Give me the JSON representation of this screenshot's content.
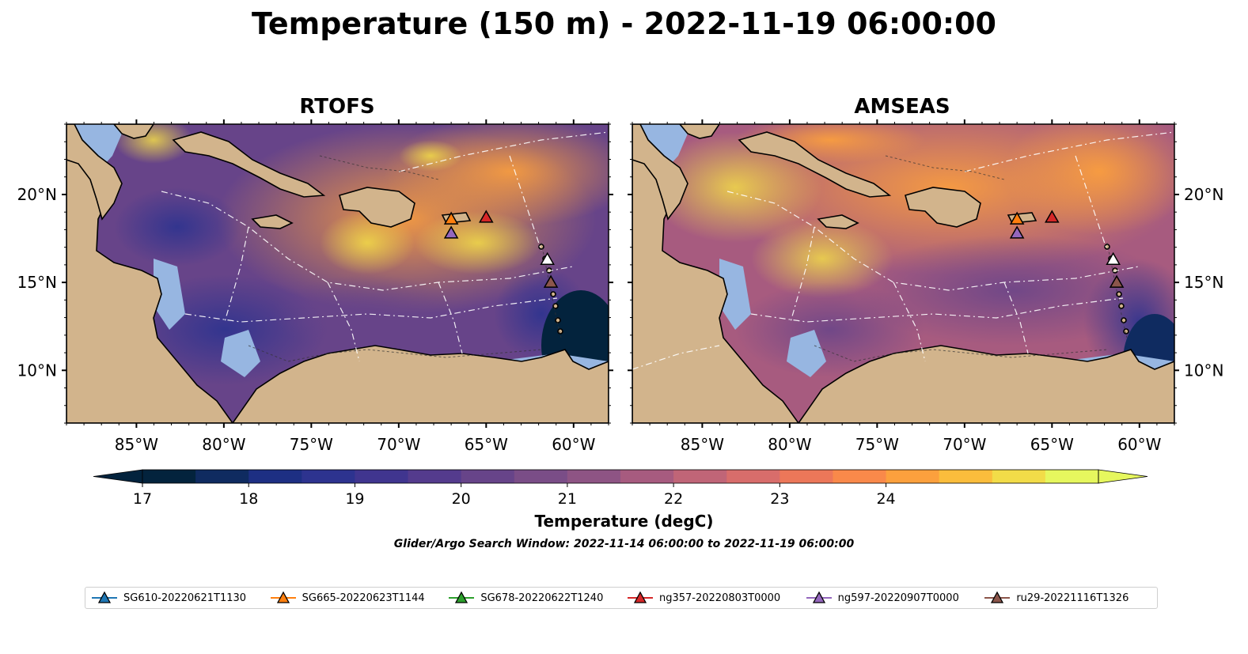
{
  "title": "Temperature (150 m) - 2022-11-19 06:00:00",
  "panels": [
    {
      "title": "RTOFS",
      "gliders": [
        {
          "lon": -67.0,
          "lat": 18.6,
          "color": "#ff7f0e"
        },
        {
          "lon": -65.0,
          "lat": 18.7,
          "color": "#d62728"
        },
        {
          "lon": -67.0,
          "lat": 17.8,
          "color": "#9467bd"
        },
        {
          "lon": -61.5,
          "lat": 16.3,
          "color": "#ffffff"
        },
        {
          "lon": -61.3,
          "lat": 15.0,
          "color": "#8c564b"
        }
      ]
    },
    {
      "title": "AMSEAS",
      "gliders": [
        {
          "lon": -67.0,
          "lat": 18.6,
          "color": "#ff7f0e"
        },
        {
          "lon": -65.0,
          "lat": 18.7,
          "color": "#d62728"
        },
        {
          "lon": -67.0,
          "lat": 17.8,
          "color": "#9467bd"
        },
        {
          "lon": -61.5,
          "lat": 16.3,
          "color": "#ffffff"
        },
        {
          "lon": -61.3,
          "lat": 15.0,
          "color": "#8c564b"
        }
      ]
    }
  ],
  "axes": {
    "lon_ticks": [
      "85°W",
      "80°W",
      "75°W",
      "70°W",
      "65°W",
      "60°W"
    ],
    "lat_ticks": [
      "20°N",
      "15°N",
      "10°N"
    ],
    "lon_range": [
      -89,
      -58
    ],
    "lat_range": [
      7,
      24
    ]
  },
  "colorbar": {
    "label": "Temperature (degC)",
    "ticks": [
      "17",
      "18",
      "19",
      "20",
      "21",
      "22",
      "23",
      "24"
    ],
    "min": 17,
    "max": 24.5,
    "step": 0.5,
    "extend": "both",
    "colors": [
      "#03233d",
      "#0f2b60",
      "#1d2f83",
      "#2d338f",
      "#40358f",
      "#543b8d",
      "#674489",
      "#7a4d87",
      "#8e5484",
      "#a75b7f",
      "#c06577",
      "#d86d6b",
      "#ec7759",
      "#f9894a",
      "#fca03d",
      "#fbbd3c",
      "#f2dc48",
      "#e6f75e"
    ],
    "under_color": "#03233d",
    "over_color": "#e6f75e"
  },
  "search_window": "Glider/Argo Search Window: 2022-11-14 06:00:00 to 2022-11-19 06:00:00",
  "legend": [
    {
      "label": "SG610-20220621T1130",
      "color": "#1f77b4"
    },
    {
      "label": "SG665-20220623T1144",
      "color": "#ff7f0e"
    },
    {
      "label": "SG678-20220622T1240",
      "color": "#2ca02c"
    },
    {
      "label": "ng357-20220803T0000",
      "color": "#d62728"
    },
    {
      "label": "ng597-20220907T0000",
      "color": "#9467bd"
    },
    {
      "label": "ru29-20221116T1326",
      "color": "#8c564b"
    }
  ],
  "colors": {
    "land": "#d2b48c",
    "shelf_water": "#97b6e1"
  }
}
